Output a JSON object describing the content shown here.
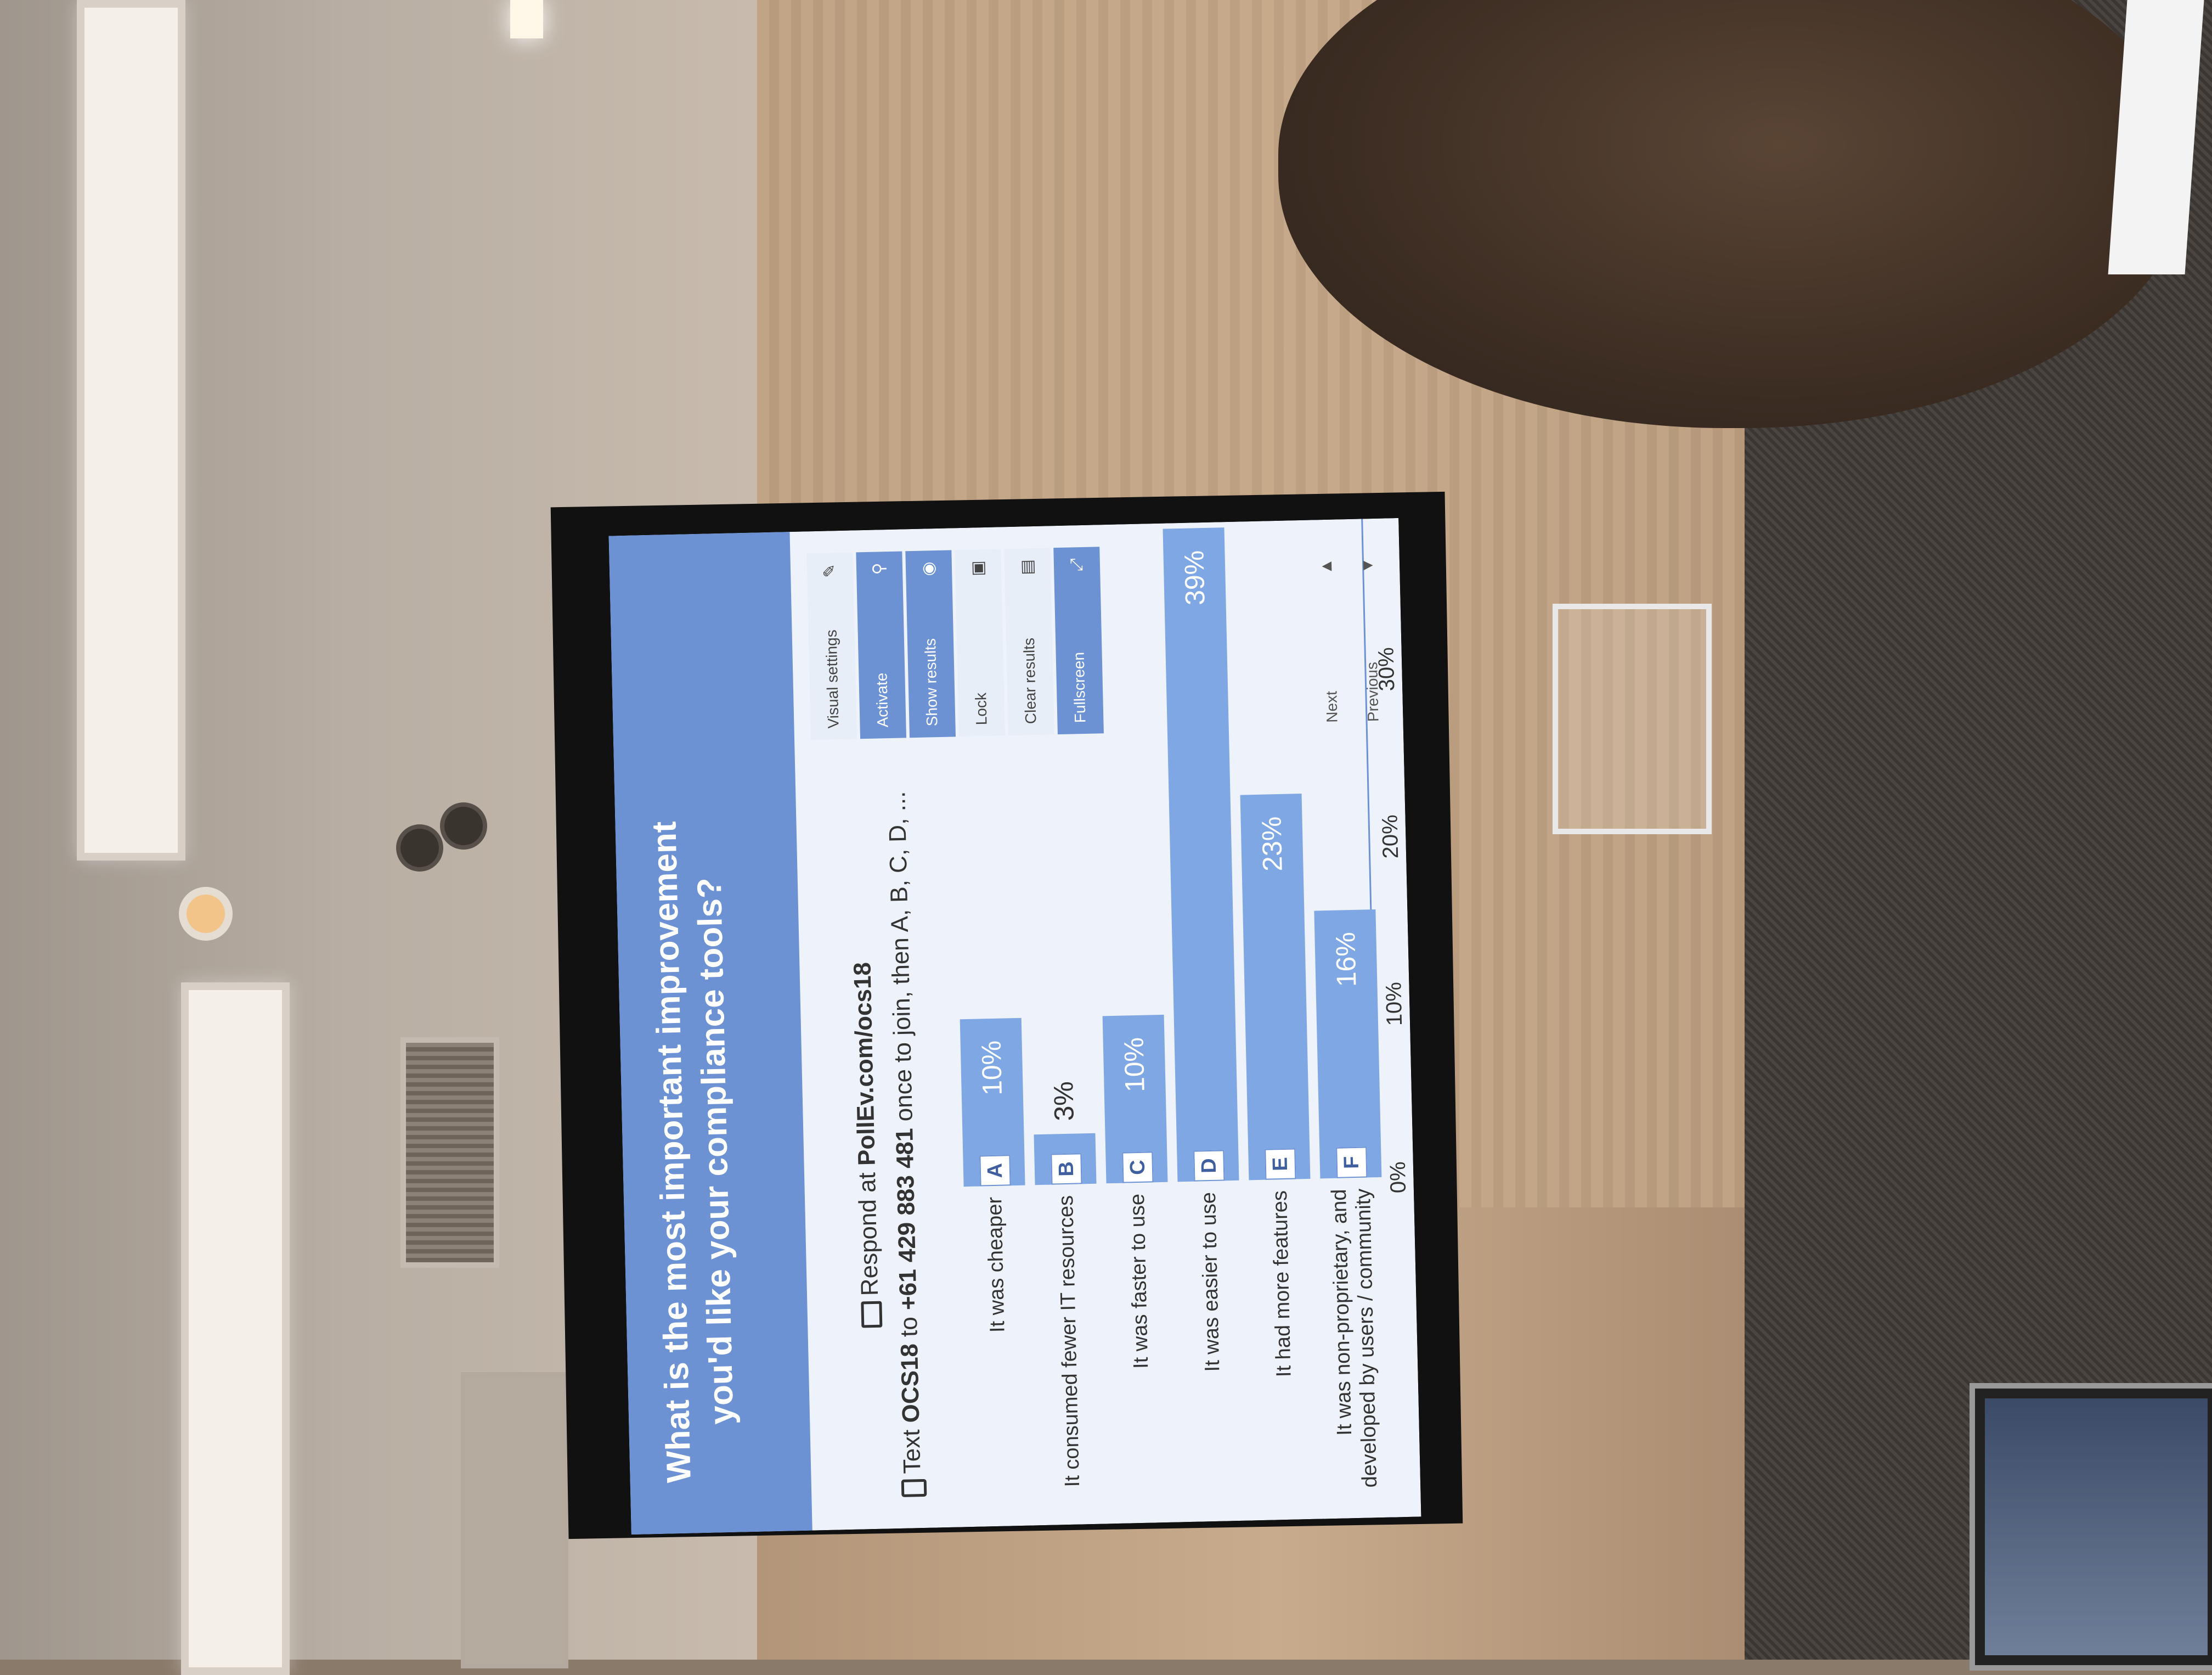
{
  "slide": {
    "question": "What is the most important improvement you'd like your compliance tools?",
    "respond_prefix": "Respond at ",
    "respond_url": "PollEv.com/ocs18",
    "text_prefix": "Text ",
    "text_code": "OCS18",
    "text_to": " to ",
    "text_number": "+61 429 883 481",
    "text_suffix": " once to join, then A, B, C, D, ...",
    "icons": [
      "monitor-icon",
      "phone-icon"
    ]
  },
  "controls": {
    "visual_settings": "Visual settings",
    "activate": "Activate",
    "show_results": "Show results",
    "lock": "Lock",
    "clear_results": "Clear results",
    "fullscreen": "Fullscreen",
    "next": "Next",
    "previous": "Previous"
  },
  "chart_data": {
    "type": "bar",
    "orientation": "horizontal",
    "categories": [
      "It was cheaper",
      "It consumed fewer IT resources",
      "It was faster to use",
      "It was easier to use",
      "It had more features",
      "It was non-proprietary, and developed by users / community"
    ],
    "letters": [
      "A",
      "B",
      "C",
      "D",
      "E",
      "F"
    ],
    "values": [
      10,
      3,
      10,
      39,
      23,
      16
    ],
    "value_labels": [
      "10%",
      "3%",
      "10%",
      "39%",
      "23%",
      "16%"
    ],
    "x_ticks": [
      "0%",
      "10%",
      "20%",
      "30%"
    ],
    "xlim": [
      0,
      40
    ],
    "color": "#7fa7e4"
  }
}
